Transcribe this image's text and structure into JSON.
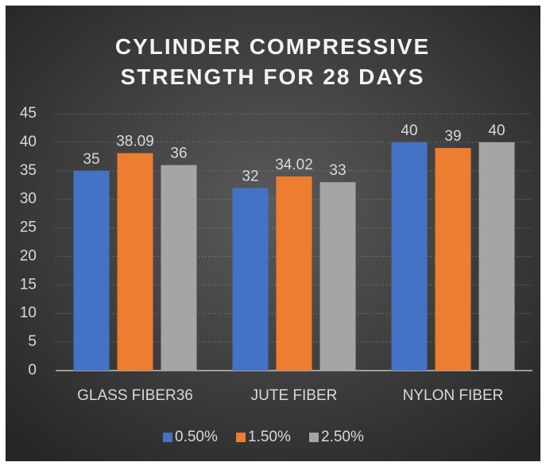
{
  "chart_data": {
    "type": "bar",
    "title": "CYLINDER COMPRESSIVE STRENGTH FOR 28 DAYS",
    "categories": [
      "GLASS FIBER36",
      "JUTE FIBER",
      "NYLON FIBER"
    ],
    "series": [
      {
        "name": "0.50%",
        "color": "#4472c4",
        "values": [
          35,
          32,
          40
        ]
      },
      {
        "name": "1.50%",
        "color": "#ed7d31",
        "values": [
          38.09,
          34.02,
          39
        ]
      },
      {
        "name": "2.50%",
        "color": "#a5a5a5",
        "values": [
          36,
          33,
          40
        ]
      }
    ],
    "ylim": [
      0,
      45
    ],
    "yticks": [
      0,
      5,
      10,
      15,
      20,
      25,
      30,
      35,
      40,
      45
    ],
    "grid": true,
    "legend": "bottom"
  }
}
